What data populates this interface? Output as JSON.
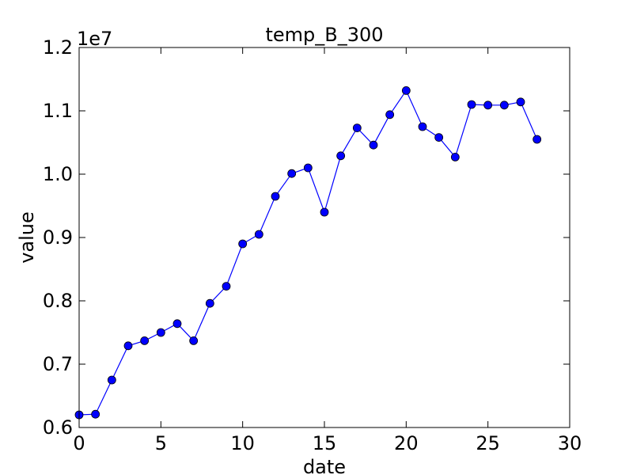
{
  "chart_data": {
    "type": "line",
    "title": "temp_B_300",
    "xlabel": "date",
    "ylabel": "value",
    "y_offset_label": "1e7",
    "xlim": [
      0,
      30
    ],
    "ylim": [
      0.6,
      1.2
    ],
    "x_ticks": [
      0,
      5,
      10,
      15,
      20,
      25,
      30
    ],
    "x_tick_labels": [
      "0",
      "5",
      "10",
      "15",
      "20",
      "25",
      "30"
    ],
    "y_ticks": [
      0.6,
      0.7,
      0.8,
      0.9,
      1.0,
      1.1,
      1.2
    ],
    "y_tick_labels": [
      "0.6",
      "0.7",
      "0.8",
      "0.9",
      "1.0",
      "1.1",
      "1.2"
    ],
    "grid": false,
    "series": [
      {
        "color": "#0000ff",
        "marker": "circle",
        "x": [
          0,
          1,
          2,
          3,
          4,
          5,
          6,
          7,
          8,
          9,
          10,
          11,
          12,
          13,
          14,
          15,
          16,
          17,
          18,
          19,
          20,
          21,
          22,
          23,
          24,
          25,
          26,
          27,
          28
        ],
        "y": [
          0.62,
          0.621,
          0.675,
          0.729,
          0.737,
          0.75,
          0.764,
          0.737,
          0.796,
          0.823,
          0.89,
          0.905,
          0.965,
          1.001,
          1.01,
          0.94,
          1.029,
          1.073,
          1.046,
          1.094,
          1.132,
          1.075,
          1.058,
          1.027,
          1.11,
          1.109,
          1.109,
          1.114,
          1.055
        ]
      }
    ]
  }
}
